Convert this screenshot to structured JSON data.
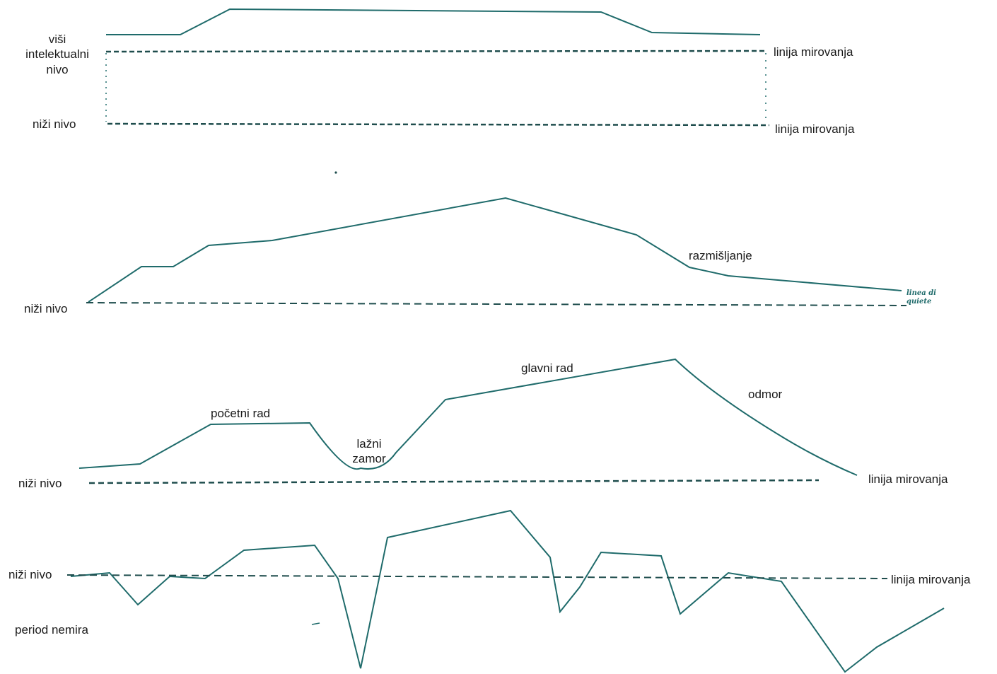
{
  "colors": {
    "curve": "#1f6b6b",
    "baseline": "#1f4d4d",
    "text": "#1a1a1a"
  },
  "panel1": {
    "upper_label": "viši intelektualni nivo",
    "lower_label": "niži nivo",
    "right_top": "linija mirovanja",
    "right_bottom": "linija mirovanja"
  },
  "panel2": {
    "left_label": "niži nivo",
    "curve_label": "razmišljanje",
    "handwritten": "linea di quiete"
  },
  "panel3": {
    "left_label": "niži nivo",
    "label_start": "početni rad",
    "label_false": "lažni zamor",
    "label_main": "glavni rad",
    "label_rest": "odmor",
    "right_label": "linija mirovanja"
  },
  "panel4": {
    "left_label": "niži nivo",
    "below_label": "period nemira",
    "right_label": "linija mirovanja"
  }
}
